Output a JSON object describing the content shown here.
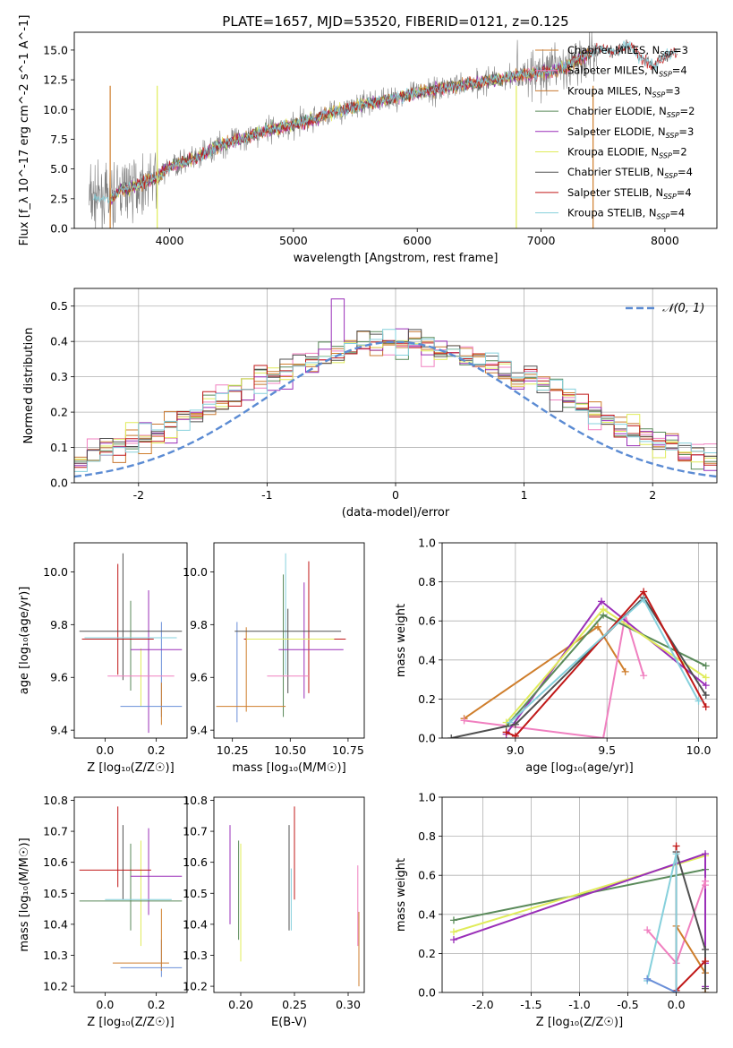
{
  "title": "PLATE=1657, MJD=53520, FIBERID=0121, z=0.125",
  "models": [
    {
      "name": "Chabrier MILES",
      "nssp": "3",
      "color": "#cf7e2c"
    },
    {
      "name": "Salpeter MILES",
      "nssp": "4",
      "color": "#f080c0"
    },
    {
      "name": "Kroupa MILES",
      "nssp": "3",
      "color": "#c87830"
    },
    {
      "name": "Chabrier ELODIE",
      "nssp": "2",
      "color": "#5a8a5a"
    },
    {
      "name": "Salpeter ELODIE",
      "nssp": "3",
      "color": "#9a2fb8"
    },
    {
      "name": "Kroupa ELODIE",
      "nssp": "2",
      "color": "#e0ec5a"
    },
    {
      "name": "Chabrier STELIB",
      "nssp": "4",
      "color": "#505050"
    },
    {
      "name": "Salpeter STELIB",
      "nssp": "4",
      "color": "#c01818"
    },
    {
      "name": "Kroupa STELIB",
      "nssp": "4",
      "color": "#86d0dc"
    }
  ],
  "chart_data": [
    {
      "type": "line",
      "xlabel": "wavelength [Angstrom, rest frame]",
      "ylabel": "Flux [f_λ 10^-17 erg cm^-2 s^-1 A^-1]",
      "xlim": [
        3230,
        8420
      ],
      "ylim": [
        0,
        16.5
      ],
      "xticks": [
        4000,
        5000,
        6000,
        7000,
        8000
      ],
      "yticks": [
        0.0,
        2.5,
        5.0,
        7.5,
        10.0,
        12.5,
        15.0
      ],
      "spectrum_trend": {
        "x": [
          3350,
          3450,
          3520,
          3600,
          3700,
          3800,
          3900,
          4000,
          4100,
          4200,
          4300,
          4400,
          4500,
          4600,
          4700,
          4800,
          4900,
          5000,
          5100,
          5200,
          5300,
          5400,
          5500,
          5600,
          5700,
          5800,
          5900,
          6000,
          6100,
          6200,
          6300,
          6400,
          6500,
          6600,
          6700,
          6800,
          6900,
          7000,
          7100,
          7200,
          7300,
          7400,
          7500,
          7600,
          7700,
          7800,
          7900,
          8000,
          8100
        ],
        "y": [
          2.5,
          2.5,
          2.4,
          3.2,
          3.5,
          3.9,
          4.3,
          5.2,
          5.5,
          5.8,
          6.4,
          7.0,
          7.3,
          7.6,
          8.0,
          8.3,
          8.5,
          8.7,
          9.0,
          9.3,
          9.7,
          10.0,
          10.2,
          10.5,
          10.7,
          10.9,
          11.1,
          11.4,
          11.6,
          11.8,
          12.0,
          12.1,
          12.3,
          12.5,
          12.6,
          12.9,
          13.0,
          13.1,
          13.3,
          13.5,
          14.2,
          14.8,
          15.2,
          14.8,
          15.5,
          14.5,
          13.6,
          14.5,
          14.8
        ]
      },
      "legend": "top-right"
    },
    {
      "type": "bar",
      "xlabel": "(data-model)/error",
      "ylabel": "Normed distribution",
      "xlim": [
        -2.5,
        2.5
      ],
      "ylim": [
        0,
        0.55
      ],
      "xticks": [
        -2,
        -1,
        0,
        1,
        2
      ],
      "yticks": [
        0.0,
        0.1,
        0.2,
        0.3,
        0.4,
        0.5
      ],
      "bin_width": 0.1,
      "reference_curve": "N(0,1)",
      "legend_label": "𝒩(0, 1)",
      "legend": "top-right"
    },
    {
      "type": "scatter",
      "xlabel": "Z [log₁₀(Z/Z☉)]",
      "ylabel": "age  [log₁₀(age/yr)]",
      "xlim": [
        -0.12,
        0.32
      ],
      "ylim": [
        9.37,
        10.11
      ],
      "xticks": [
        0.0,
        0.2
      ],
      "yticks": [
        9.4,
        9.6,
        9.8,
        10.0
      ],
      "points": [
        {
          "x": 0.05,
          "xerr": 0.0,
          "y": 9.82,
          "yerr": 0.21,
          "color": "#c01818"
        },
        {
          "x": 0.07,
          "xerr": 0.0,
          "y": 9.83,
          "yerr": 0.24,
          "color": "#505050"
        },
        {
          "x": 0.1,
          "xerr": 0.0,
          "y": 9.72,
          "yerr": 0.17,
          "color": "#5a8a5a"
        },
        {
          "x": 0.14,
          "xerr": 0.0,
          "y": 9.6,
          "yerr": 0.11,
          "color": "#e0ec5a"
        },
        {
          "x": 0.17,
          "xerr": 0.0,
          "y": 9.66,
          "yerr": 0.27,
          "color": "#9a2fb8"
        },
        {
          "x": 0.22,
          "xerr": 0.0,
          "y": 9.63,
          "yerr": 0.18,
          "color": "#6a8fd8"
        },
        {
          "x": 0.22,
          "xerr": 0.0,
          "y": 9.5,
          "yerr": 0.08,
          "color": "#cf7e2c"
        },
        {
          "x": 0.1,
          "xerr": 0.2,
          "y": 9.775,
          "yerr": 0.0,
          "color": "#505050"
        },
        {
          "x": 0.05,
          "xerr": 0.14,
          "y": 9.745,
          "yerr": 0.0,
          "color": "#c01818"
        },
        {
          "x": 0.1,
          "xerr": 0.18,
          "y": 9.75,
          "yerr": 0.0,
          "color": "#86d0dc"
        },
        {
          "x": 0.2,
          "xerr": 0.1,
          "y": 9.705,
          "yerr": 0.0,
          "color": "#9a2fb8"
        },
        {
          "x": 0.14,
          "xerr": 0.13,
          "y": 9.605,
          "yerr": 0.0,
          "color": "#f080c0"
        },
        {
          "x": 0.18,
          "xerr": 0.12,
          "y": 9.49,
          "yerr": 0.0,
          "color": "#6a8fd8"
        }
      ]
    },
    {
      "type": "scatter",
      "xlabel": "mass [log₁₀(M/M☉)]",
      "xlim": [
        10.17,
        10.82
      ],
      "ylim": [
        9.37,
        10.11
      ],
      "xticks": [
        10.25,
        10.5,
        10.75
      ],
      "yticks": [
        9.4,
        9.6,
        9.8,
        10.0
      ],
      "points": [
        {
          "x": 10.27,
          "xerr": 0.0,
          "y": 9.62,
          "yerr": 0.19,
          "color": "#6a8fd8"
        },
        {
          "x": 10.31,
          "xerr": 0.0,
          "y": 9.63,
          "yerr": 0.16,
          "color": "#cf7e2c"
        },
        {
          "x": 10.47,
          "xerr": 0.0,
          "y": 9.72,
          "yerr": 0.27,
          "color": "#5a8a5a"
        },
        {
          "x": 10.48,
          "xerr": 0.0,
          "y": 9.84,
          "yerr": 0.23,
          "color": "#86d0dc"
        },
        {
          "x": 10.49,
          "xerr": 0.0,
          "y": 9.7,
          "yerr": 0.16,
          "color": "#505050"
        },
        {
          "x": 10.56,
          "xerr": 0.0,
          "y": 9.74,
          "yerr": 0.22,
          "color": "#9a2fb8"
        },
        {
          "x": 10.58,
          "xerr": 0.0,
          "y": 9.79,
          "yerr": 0.25,
          "color": "#c01818"
        },
        {
          "x": 10.49,
          "xerr": 0.23,
          "y": 9.775,
          "yerr": 0.0,
          "color": "#505050"
        },
        {
          "x": 10.52,
          "xerr": 0.22,
          "y": 9.745,
          "yerr": 0.0,
          "color": "#c01818"
        },
        {
          "x": 10.5,
          "xerr": 0.19,
          "y": 9.745,
          "yerr": 0.0,
          "color": "#e0ec5a"
        },
        {
          "x": 10.59,
          "xerr": 0.14,
          "y": 9.705,
          "yerr": 0.0,
          "color": "#9a2fb8"
        },
        {
          "x": 10.49,
          "xerr": 0.09,
          "y": 9.605,
          "yerr": 0.0,
          "color": "#f080c0"
        },
        {
          "x": 10.33,
          "xerr": 0.15,
          "y": 9.49,
          "yerr": 0.0,
          "color": "#cf7e2c"
        }
      ]
    },
    {
      "type": "line",
      "xlabel": "age  [log₁₀(age/yr)]",
      "ylabel": "mass weight",
      "xlim": [
        8.6,
        10.1
      ],
      "ylim": [
        0,
        1
      ],
      "xticks": [
        9.0,
        9.5,
        10.0
      ],
      "yticks": [
        0.0,
        0.2,
        0.4,
        0.6,
        0.8,
        1.0
      ],
      "series": [
        {
          "color": "#cf7e2c",
          "x": [
            8.72,
            9.45,
            9.6
          ],
          "y": [
            0.1,
            0.57,
            0.34
          ]
        },
        {
          "color": "#f080c0",
          "x": [
            8.72,
            9.48,
            9.6,
            9.7
          ],
          "y": [
            0.09,
            0.0,
            0.63,
            0.32
          ]
        },
        {
          "color": "#9a2fb8",
          "x": [
            8.95,
            9.47,
            10.04
          ],
          "y": [
            0.02,
            0.7,
            0.27
          ]
        },
        {
          "color": "#5a8a5a",
          "x": [
            8.95,
            9.48,
            10.04
          ],
          "y": [
            0.06,
            0.63,
            0.37
          ]
        },
        {
          "color": "#e0ec5a",
          "x": [
            8.95,
            9.48,
            10.04
          ],
          "y": [
            0.08,
            0.66,
            0.31
          ]
        },
        {
          "color": "#505050",
          "x": [
            8.65,
            9.0,
            9.7,
            10.04
          ],
          "y": [
            0.0,
            0.07,
            0.72,
            0.22
          ]
        },
        {
          "color": "#c01818",
          "x": [
            8.95,
            9.0,
            9.7,
            10.04
          ],
          "y": [
            0.03,
            0.01,
            0.75,
            0.16
          ]
        },
        {
          "color": "#86d0dc",
          "x": [
            8.97,
            9.7,
            10.0
          ],
          "y": [
            0.08,
            0.71,
            0.19
          ]
        }
      ]
    },
    {
      "type": "scatter",
      "xlabel": "Z [log₁₀(Z/Z☉)]",
      "ylabel": "mass [log₁₀(M/M☉)]",
      "xlim": [
        -0.12,
        0.32
      ],
      "ylim": [
        10.18,
        10.81
      ],
      "xticks": [
        0.0,
        0.2
      ],
      "yticks": [
        10.2,
        10.3,
        10.4,
        10.5,
        10.6,
        10.7,
        10.8
      ],
      "points": [
        {
          "x": 0.05,
          "xerr": 0.0,
          "y": 10.65,
          "yerr": 0.13,
          "color": "#c01818"
        },
        {
          "x": 0.07,
          "xerr": 0.0,
          "y": 10.6,
          "yerr": 0.12,
          "color": "#505050"
        },
        {
          "x": 0.1,
          "xerr": 0.0,
          "y": 10.52,
          "yerr": 0.14,
          "color": "#5a8a5a"
        },
        {
          "x": 0.14,
          "xerr": 0.0,
          "y": 10.5,
          "yerr": 0.17,
          "color": "#e0ec5a"
        },
        {
          "x": 0.17,
          "xerr": 0.0,
          "y": 10.57,
          "yerr": 0.14,
          "color": "#9a2fb8"
        },
        {
          "x": 0.22,
          "xerr": 0.0,
          "y": 10.29,
          "yerr": 0.06,
          "color": "#6a8fd8"
        },
        {
          "x": 0.22,
          "xerr": 0.0,
          "y": 10.35,
          "yerr": 0.1,
          "color": "#cf7e2c"
        },
        {
          "x": 0.1,
          "xerr": 0.2,
          "y": 10.475,
          "yerr": 0.0,
          "color": "#5a8a5a"
        },
        {
          "x": 0.04,
          "xerr": 0.14,
          "y": 10.575,
          "yerr": 0.0,
          "color": "#c01818"
        },
        {
          "x": 0.2,
          "xerr": 0.1,
          "y": 10.555,
          "yerr": 0.0,
          "color": "#9a2fb8"
        },
        {
          "x": 0.13,
          "xerr": 0.13,
          "y": 10.48,
          "yerr": 0.0,
          "color": "#86d0dc"
        },
        {
          "x": 0.14,
          "xerr": 0.11,
          "y": 10.275,
          "yerr": 0.0,
          "color": "#cf7e2c"
        },
        {
          "x": 0.18,
          "xerr": 0.12,
          "y": 10.26,
          "yerr": 0.0,
          "color": "#6a8fd8"
        }
      ]
    },
    {
      "type": "scatter",
      "xlabel": "E(B-V)",
      "xlim": [
        0.175,
        0.315
      ],
      "ylim": [
        10.18,
        10.81
      ],
      "xticks": [
        0.2,
        0.25,
        0.3
      ],
      "yticks": [
        10.2,
        10.3,
        10.4,
        10.5,
        10.6,
        10.7,
        10.8
      ],
      "points": [
        {
          "x": 0.19,
          "y": 10.56,
          "yerr": 0.16,
          "color": "#9a2fb8"
        },
        {
          "x": 0.198,
          "y": 10.51,
          "yerr": 0.16,
          "color": "#5a8a5a"
        },
        {
          "x": 0.2,
          "y": 10.47,
          "yerr": 0.19,
          "color": "#e0ec5a"
        },
        {
          "x": 0.245,
          "y": 10.55,
          "yerr": 0.17,
          "color": "#505050"
        },
        {
          "x": 0.247,
          "y": 10.48,
          "yerr": 0.1,
          "color": "#86d0dc"
        },
        {
          "x": 0.25,
          "y": 10.63,
          "yerr": 0.15,
          "color": "#c01818"
        },
        {
          "x": 0.309,
          "y": 10.46,
          "yerr": 0.13,
          "color": "#f080c0"
        },
        {
          "x": 0.31,
          "y": 10.32,
          "yerr": 0.12,
          "color": "#cf7e2c"
        }
      ]
    },
    {
      "type": "line",
      "xlabel": "Z [log₁₀(Z/Z☉)]",
      "ylabel": "mass weight",
      "xlim": [
        -2.42,
        0.42
      ],
      "ylim": [
        0,
        1
      ],
      "xticks": [
        -2.0,
        -1.5,
        -1.0,
        -0.5,
        0.0
      ],
      "yticks": [
        0.0,
        0.2,
        0.4,
        0.6,
        0.8,
        1.0
      ],
      "series": [
        {
          "color": "#5a8a5a",
          "x": [
            -2.3,
            0.3
          ],
          "y": [
            0.37,
            0.63
          ]
        },
        {
          "color": "#e0ec5a",
          "x": [
            -2.3,
            0.3
          ],
          "y": [
            0.31,
            0.7
          ]
        },
        {
          "color": "#9a2fb8",
          "x": [
            -2.3,
            0.3,
            0.3,
            0.3
          ],
          "y": [
            0.27,
            0.71,
            0.03,
            0.15
          ]
        },
        {
          "color": "#f080c0",
          "x": [
            -0.3,
            0.0,
            0.3,
            0.3
          ],
          "y": [
            0.32,
            0.15,
            0.57,
            0.55
          ]
        },
        {
          "color": "#cf7e2c",
          "x": [
            0.0,
            0.3,
            0.3
          ],
          "y": [
            0.34,
            0.1,
            0.0
          ]
        },
        {
          "color": "#505050",
          "x": [
            0.0,
            0.3,
            0.3
          ],
          "y": [
            0.72,
            0.22,
            0.02
          ]
        },
        {
          "color": "#c01818",
          "x": [
            0.0,
            0.0,
            0.3
          ],
          "y": [
            0.75,
            0.01,
            0.16
          ]
        },
        {
          "color": "#86d0dc",
          "x": [
            -0.3,
            0.0,
            0.0
          ],
          "y": [
            0.06,
            0.71,
            0.0
          ]
        },
        {
          "color": "#6a8fd8",
          "x": [
            -0.3,
            0.0
          ],
          "y": [
            0.07,
            0.0
          ]
        }
      ]
    }
  ]
}
